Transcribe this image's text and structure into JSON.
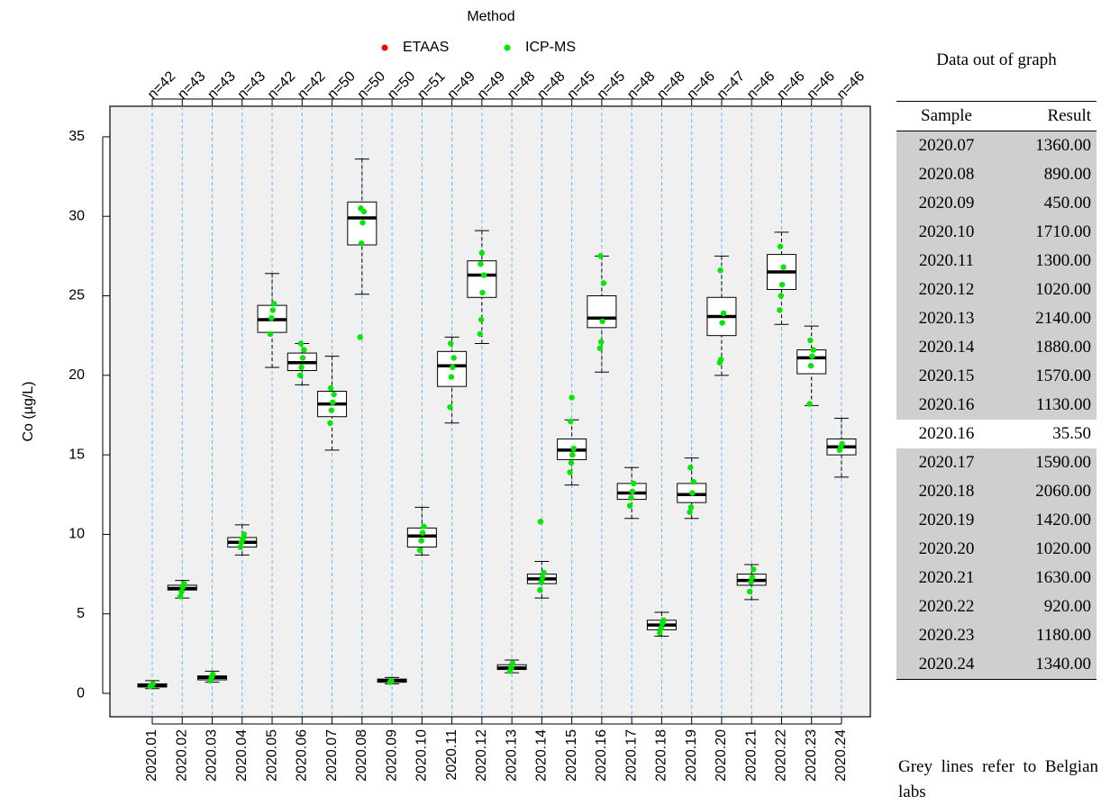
{
  "chart_data": {
    "type": "box",
    "legend_title": "Method",
    "series": [
      {
        "name": "ETAAS",
        "color": "#ff0000"
      },
      {
        "name": "ICP-MS",
        "color": "#00e600",
        "values": [
          [
            0.45,
            0.5,
            0.6
          ],
          [
            6.1,
            6.4,
            6.7,
            6.9
          ],
          [
            0.8,
            1.0,
            1.2
          ],
          [
            9.2,
            9.5,
            9.7,
            10.0
          ],
          [
            22.6,
            23.6,
            24.1,
            24.5
          ],
          [
            20.0,
            20.5,
            21.1,
            21.6,
            22.0
          ],
          [
            17.0,
            17.8,
            18.3,
            18.8,
            19.2
          ],
          [
            22.4,
            28.3,
            29.6,
            30.3,
            30.5
          ],
          [
            0.7,
            0.8
          ],
          [
            9.0,
            9.6,
            10.1,
            10.5
          ],
          [
            18.0,
            19.9,
            20.5,
            21.1,
            22.0
          ],
          [
            22.6,
            23.5,
            25.2,
            26.3,
            27.0,
            27.7
          ],
          [
            1.4,
            1.6,
            1.9
          ],
          [
            6.5,
            7.0,
            7.3,
            7.6,
            10.8
          ],
          [
            13.9,
            14.5,
            15.0,
            15.4,
            17.1,
            18.6
          ],
          [
            21.7,
            22.1,
            23.4,
            25.8,
            27.5
          ],
          [
            11.8,
            12.3,
            12.7,
            13.2
          ],
          [
            3.8,
            4.1,
            4.4,
            4.6
          ],
          [
            11.4,
            11.7,
            12.6,
            13.3,
            14.2
          ],
          [
            20.8,
            21.0,
            23.3,
            23.9,
            26.6
          ],
          [
            6.4,
            7.0,
            7.3,
            7.8
          ],
          [
            24.1,
            25.0,
            25.7,
            26.8,
            28.1
          ],
          [
            18.2,
            20.6,
            21.2,
            21.6,
            22.2
          ],
          [
            15.3,
            15.5,
            15.7
          ]
        ]
      }
    ],
    "categories": [
      "2020.01",
      "2020.02",
      "2020.03",
      "2020.04",
      "2020.05",
      "2020.06",
      "2020.07",
      "2020.08",
      "2020.09",
      "2020.10",
      "2020.11",
      "2020.12",
      "2020.13",
      "2020.14",
      "2020.15",
      "2020.16",
      "2020.17",
      "2020.18",
      "2020.19",
      "2020.20",
      "2020.21",
      "2020.22",
      "2020.23",
      "2020.24"
    ],
    "counts": [
      "n=42",
      "n=43",
      "n=43",
      "n=43",
      "n=42",
      "n=42",
      "n=50",
      "n=50",
      "n=50",
      "n=51",
      "n=49",
      "n=49",
      "n=48",
      "n=48",
      "n=45",
      "n=45",
      "n=48",
      "n=48",
      "n=46",
      "n=47",
      "n=46",
      "n=46",
      "n=46",
      "n=46"
    ],
    "boxes": [
      {
        "low": 0.3,
        "q1": 0.4,
        "median": 0.5,
        "q3": 0.6,
        "high": 0.8
      },
      {
        "low": 6.0,
        "q1": 6.5,
        "median": 6.6,
        "q3": 6.8,
        "high": 7.1
      },
      {
        "low": 0.7,
        "q1": 0.85,
        "median": 1.0,
        "q3": 1.1,
        "high": 1.4
      },
      {
        "low": 8.7,
        "q1": 9.2,
        "median": 9.5,
        "q3": 9.8,
        "high": 10.6
      },
      {
        "low": 20.5,
        "q1": 22.7,
        "median": 23.5,
        "q3": 24.4,
        "high": 26.4
      },
      {
        "low": 19.4,
        "q1": 20.3,
        "median": 20.8,
        "q3": 21.4,
        "high": 22.0
      },
      {
        "low": 15.3,
        "q1": 17.4,
        "median": 18.2,
        "q3": 19.0,
        "high": 21.2
      },
      {
        "low": 25.1,
        "q1": 28.2,
        "median": 29.9,
        "q3": 30.9,
        "high": 33.6
      },
      {
        "low": 0.6,
        "q1": 0.7,
        "median": 0.8,
        "q3": 0.9,
        "high": 1.0
      },
      {
        "low": 8.7,
        "q1": 9.2,
        "median": 9.9,
        "q3": 10.4,
        "high": 11.7
      },
      {
        "low": 17.0,
        "q1": 19.3,
        "median": 20.6,
        "q3": 21.5,
        "high": 22.4
      },
      {
        "low": 22.0,
        "q1": 24.9,
        "median": 26.3,
        "q3": 27.2,
        "high": 29.1
      },
      {
        "low": 1.3,
        "q1": 1.5,
        "median": 1.6,
        "q3": 1.8,
        "high": 2.1
      },
      {
        "low": 6.0,
        "q1": 6.9,
        "median": 7.2,
        "q3": 7.5,
        "high": 8.3
      },
      {
        "low": 13.1,
        "q1": 14.7,
        "median": 15.3,
        "q3": 16.0,
        "high": 17.2
      },
      {
        "low": 20.2,
        "q1": 23.0,
        "median": 23.6,
        "q3": 25.0,
        "high": 27.5
      },
      {
        "low": 11.0,
        "q1": 12.2,
        "median": 12.6,
        "q3": 13.2,
        "high": 14.2
      },
      {
        "low": 3.6,
        "q1": 4.0,
        "median": 4.3,
        "q3": 4.6,
        "high": 5.1
      },
      {
        "low": 11.0,
        "q1": 12.0,
        "median": 12.5,
        "q3": 13.2,
        "high": 14.8
      },
      {
        "low": 20.0,
        "q1": 22.5,
        "median": 23.7,
        "q3": 24.9,
        "high": 27.5
      },
      {
        "low": 5.9,
        "q1": 6.8,
        "median": 7.1,
        "q3": 7.5,
        "high": 8.1
      },
      {
        "low": 23.2,
        "q1": 25.4,
        "median": 26.5,
        "q3": 27.6,
        "high": 29.0
      },
      {
        "low": 18.1,
        "q1": 20.1,
        "median": 21.1,
        "q3": 21.6,
        "high": 23.1
      },
      {
        "low": 13.6,
        "q1": 15.0,
        "median": 15.5,
        "q3": 16.0,
        "high": 17.3
      }
    ],
    "ylabel": "Co (µg/L)",
    "ylim": [
      -1.47,
      36.92
    ],
    "yticks": [
      0,
      5,
      10,
      15,
      20,
      25,
      30,
      35
    ],
    "grid": true
  },
  "table": {
    "title": "Data out of graph",
    "header": [
      "Sample",
      "Result"
    ],
    "rows": [
      {
        "cells": [
          "2020.07",
          "1360.00"
        ],
        "belgian": true
      },
      {
        "cells": [
          "2020.08",
          "890.00"
        ],
        "belgian": true
      },
      {
        "cells": [
          "2020.09",
          "450.00"
        ],
        "belgian": true
      },
      {
        "cells": [
          "2020.10",
          "1710.00"
        ],
        "belgian": true
      },
      {
        "cells": [
          "2020.11",
          "1300.00"
        ],
        "belgian": true
      },
      {
        "cells": [
          "2020.12",
          "1020.00"
        ],
        "belgian": true
      },
      {
        "cells": [
          "2020.13",
          "2140.00"
        ],
        "belgian": true
      },
      {
        "cells": [
          "2020.14",
          "1880.00"
        ],
        "belgian": true
      },
      {
        "cells": [
          "2020.15",
          "1570.00"
        ],
        "belgian": true
      },
      {
        "cells": [
          "2020.16",
          "1130.00"
        ],
        "belgian": true
      },
      {
        "cells": [
          "2020.16",
          "35.50"
        ],
        "belgian": false
      },
      {
        "cells": [
          "2020.17",
          "1590.00"
        ],
        "belgian": true
      },
      {
        "cells": [
          "2020.18",
          "2060.00"
        ],
        "belgian": true
      },
      {
        "cells": [
          "2020.19",
          "1420.00"
        ],
        "belgian": true
      },
      {
        "cells": [
          "2020.20",
          "1020.00"
        ],
        "belgian": true
      },
      {
        "cells": [
          "2020.21",
          "1630.00"
        ],
        "belgian": true
      },
      {
        "cells": [
          "2020.22",
          "920.00"
        ],
        "belgian": true
      },
      {
        "cells": [
          "2020.23",
          "1180.00"
        ],
        "belgian": true
      },
      {
        "cells": [
          "2020.24",
          "1340.00"
        ],
        "belgian": true
      }
    ],
    "note": "Grey lines refer to Belgian labs"
  }
}
